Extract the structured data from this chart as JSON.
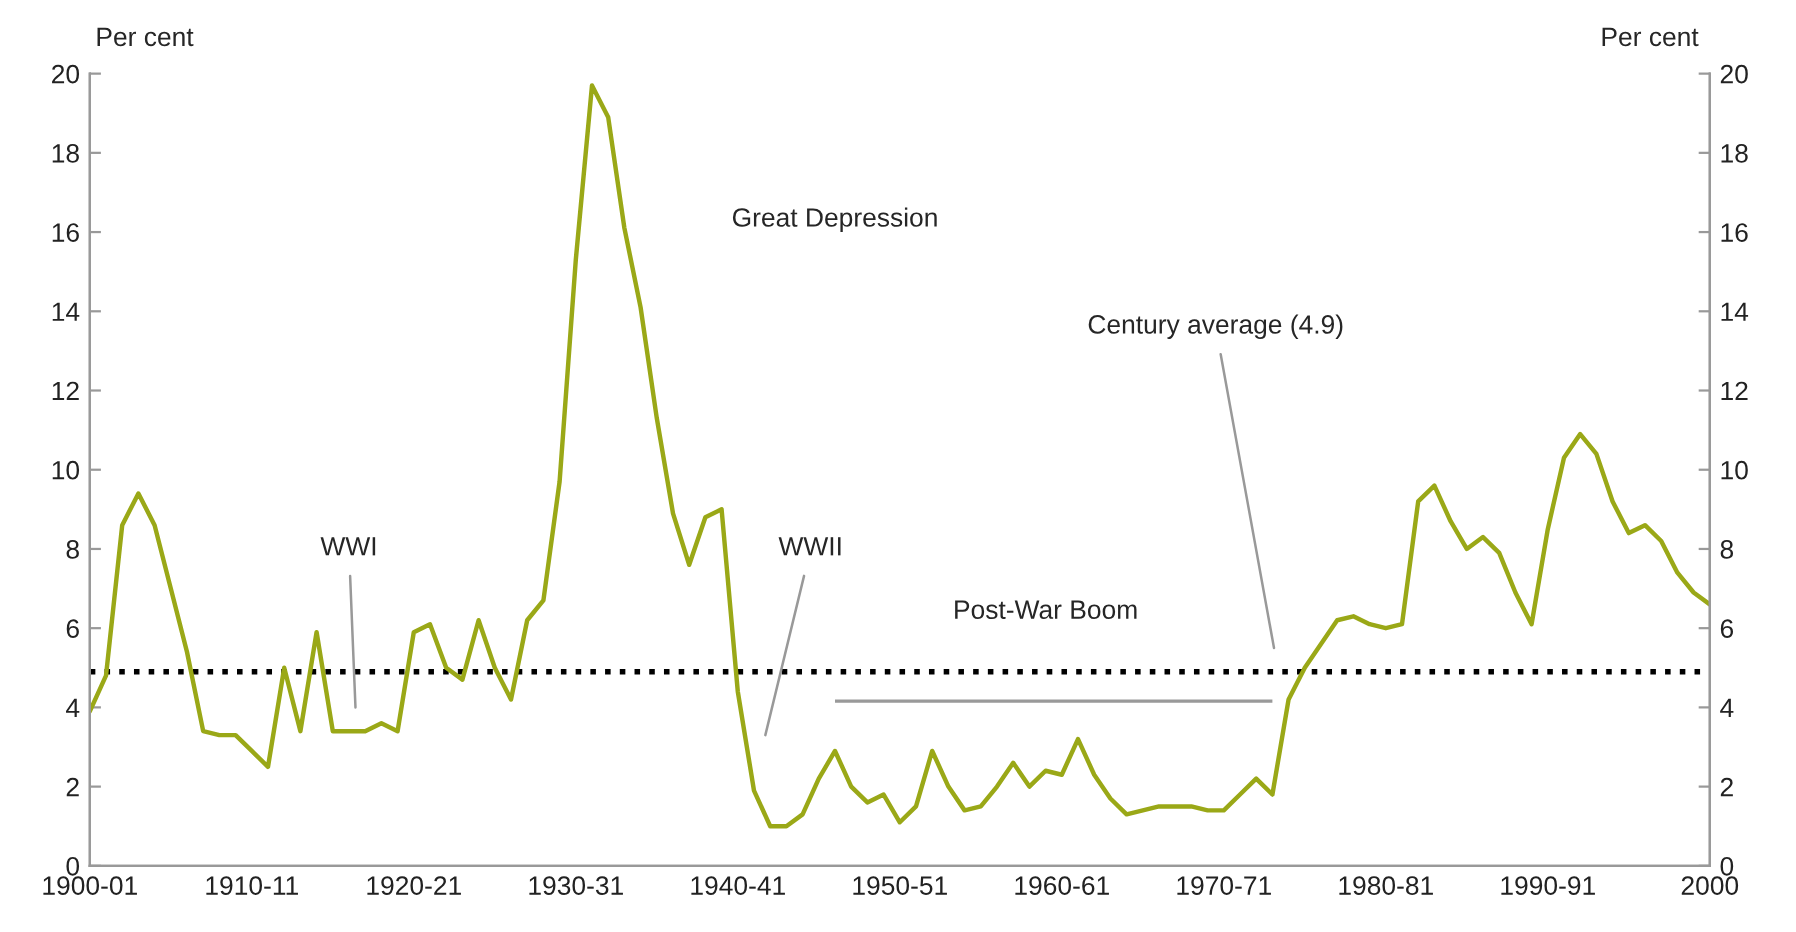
{
  "chart_data": {
    "type": "line",
    "ylabel": "Per cent",
    "y2label": "Per cent",
    "categories": [
      "1900-01",
      null,
      null,
      null,
      null,
      null,
      null,
      null,
      null,
      null,
      "1910-11",
      null,
      null,
      null,
      null,
      null,
      null,
      null,
      null,
      null,
      "1920-21",
      null,
      null,
      null,
      null,
      null,
      null,
      null,
      null,
      null,
      "1930-31",
      null,
      null,
      null,
      null,
      null,
      null,
      null,
      null,
      null,
      "1940-41",
      null,
      null,
      null,
      null,
      null,
      null,
      null,
      null,
      null,
      "1950-51",
      null,
      null,
      null,
      null,
      null,
      null,
      null,
      null,
      null,
      "1960-61",
      null,
      null,
      null,
      null,
      null,
      null,
      null,
      null,
      null,
      "1970-71",
      null,
      null,
      null,
      null,
      null,
      null,
      null,
      null,
      null,
      "1980-81",
      null,
      null,
      null,
      null,
      null,
      null,
      null,
      null,
      null,
      "1990-91",
      null,
      null,
      null,
      null,
      null,
      null,
      null,
      null,
      null,
      "2000"
    ],
    "series": [
      {
        "color": "#9aa817",
        "values": [
          3.9,
          4.8,
          8.6,
          9.4,
          8.6,
          7.0,
          5.4,
          3.4,
          3.3,
          3.3,
          2.9,
          2.5,
          5.0,
          3.4,
          5.9,
          3.4,
          3.4,
          3.4,
          3.6,
          3.4,
          5.9,
          6.1,
          5.0,
          4.7,
          6.2,
          5.0,
          4.2,
          6.2,
          6.7,
          9.7,
          15.3,
          19.7,
          18.9,
          16.1,
          14.1,
          11.3,
          8.9,
          7.6,
          8.8,
          9.0,
          4.4,
          1.9,
          1.0,
          1.0,
          1.3,
          2.2,
          2.9,
          2.0,
          1.6,
          1.8,
          1.1,
          1.5,
          2.9,
          2.0,
          1.4,
          1.5,
          2.0,
          2.6,
          2.0,
          2.4,
          2.3,
          3.2,
          2.3,
          1.7,
          1.3,
          1.4,
          1.5,
          1.5,
          1.5,
          1.4,
          1.4,
          1.8,
          2.2,
          1.8,
          4.2,
          5.0,
          5.6,
          6.2,
          6.3,
          6.1,
          6.0,
          6.1,
          9.2,
          9.6,
          8.7,
          8.0,
          8.3,
          7.9,
          6.9,
          6.1,
          8.5,
          10.3,
          10.9,
          10.4,
          9.2,
          8.4,
          8.6,
          8.2,
          7.4,
          6.9,
          6.6
        ]
      }
    ],
    "ylim": [
      0,
      20
    ],
    "yticks": [
      0,
      2,
      4,
      6,
      8,
      10,
      12,
      14,
      16,
      18,
      20
    ],
    "y2lim": [
      0,
      20
    ],
    "y2ticks": [
      0,
      2,
      4,
      6,
      8,
      10,
      12,
      14,
      16,
      18,
      20
    ],
    "ref_lines": [
      {
        "axis": "y",
        "value": 4.9,
        "color": "#000000",
        "line_style": "dotted"
      }
    ],
    "annotations": [
      "Great Depression",
      "WWI",
      "WWII",
      "Post-War Boom",
      "Century average (4.9)"
    ],
    "grid": false,
    "marker": "none",
    "line_style": "solid"
  }
}
